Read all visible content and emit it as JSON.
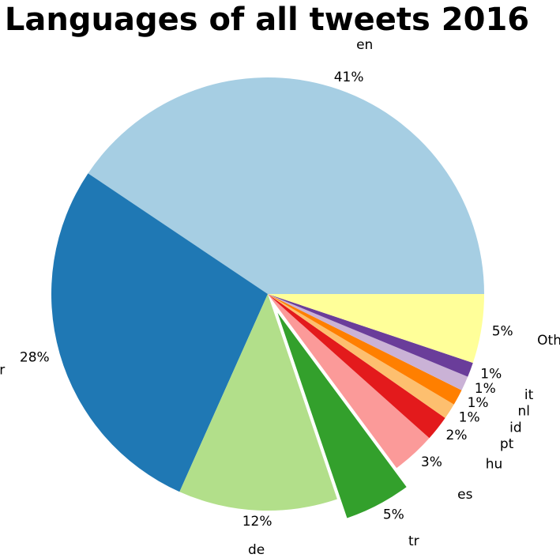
{
  "chart_data": {
    "type": "pie",
    "title": "Languages of all tweets 2016",
    "start_angle_deg": 0,
    "direction": "counterclockwise",
    "slices": [
      {
        "label": "en",
        "pct_label": "41%",
        "value": 41.0,
        "color": "#a6cee3",
        "exploded": false
      },
      {
        "label": "fr",
        "pct_label": "28%",
        "value": 28.0,
        "color": "#1f78b4",
        "exploded": false
      },
      {
        "label": "de",
        "pct_label": "12%",
        "value": 12.0,
        "color": "#b2df8a",
        "exploded": false
      },
      {
        "label": "tr",
        "pct_label": "5%",
        "value": 5.0,
        "color": "#33a02c",
        "exploded": true
      },
      {
        "label": "es",
        "pct_label": "3%",
        "value": 3.3,
        "color": "#fb9a99",
        "exploded": false
      },
      {
        "label": "hu",
        "pct_label": "2%",
        "value": 1.9,
        "color": "#e31a1c",
        "exploded": false
      },
      {
        "label": "pt",
        "pct_label": "1%",
        "value": 1.2,
        "color": "#fdbf6f",
        "exploded": false
      },
      {
        "label": "id",
        "pct_label": "1%",
        "value": 1.2,
        "color": "#ff7f00",
        "exploded": false
      },
      {
        "label": "nl",
        "pct_label": "1%",
        "value": 1.1,
        "color": "#cab2d6",
        "exploded": false
      },
      {
        "label": "it",
        "pct_label": "1%",
        "value": 1.1,
        "color": "#6a3d9a",
        "exploded": false
      },
      {
        "label": "Other",
        "pct_label": "5%",
        "value": 5.2,
        "color": "#ffff99",
        "exploded": false
      }
    ]
  }
}
